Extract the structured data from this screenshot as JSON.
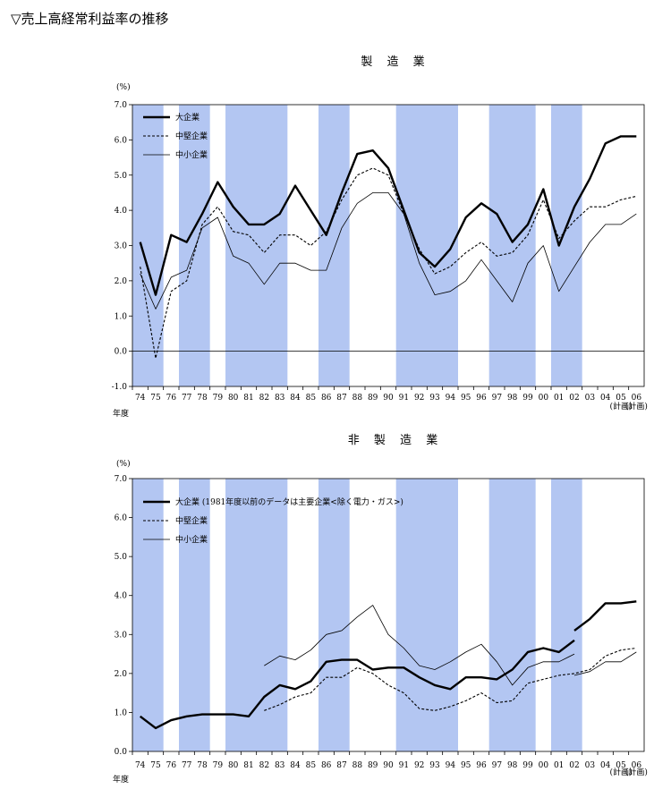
{
  "heading": "▽売上高経常利益率の推移",
  "chart_data": [
    {
      "type": "line",
      "title": "製 造 業",
      "unit_label": "(%)",
      "x_axis_label": "年度",
      "x": [
        "74",
        "75",
        "76",
        "77",
        "78",
        "79",
        "80",
        "81",
        "82",
        "83",
        "84",
        "85",
        "86",
        "87",
        "88",
        "89",
        "90",
        "91",
        "92",
        "93",
        "94",
        "95",
        "96",
        "97",
        "98",
        "99",
        "00",
        "01",
        "02",
        "03",
        "04",
        "05",
        "06"
      ],
      "plan_labels": [
        "(計画)",
        "(計画)"
      ],
      "ylim": [
        -1.0,
        7.0
      ],
      "yticks": [
        "7.0",
        "6.0",
        "5.0",
        "4.0",
        "3.0",
        "2.0",
        "1.0",
        "0.0",
        "-1.0"
      ],
      "grid": false,
      "legend_position": "top-left",
      "shaded_periods": [
        [
          "74",
          "75"
        ],
        [
          "77",
          "78"
        ],
        [
          "80",
          "83"
        ],
        [
          "86",
          "87"
        ],
        [
          "91",
          "94"
        ],
        [
          "97",
          "99"
        ],
        [
          "01",
          "02"
        ]
      ],
      "series": [
        {
          "name": "大企業",
          "style": "bold",
          "values": [
            3.1,
            1.6,
            3.3,
            3.1,
            3.9,
            4.8,
            4.1,
            3.6,
            3.6,
            3.9,
            4.7,
            4.0,
            3.3,
            4.5,
            5.6,
            5.7,
            5.2,
            4.0,
            2.8,
            2.4,
            2.9,
            3.8,
            4.2,
            3.9,
            3.1,
            3.6,
            4.6,
            3.0,
            4.1,
            4.9,
            5.9,
            6.1,
            6.1
          ]
        },
        {
          "name": "中堅企業",
          "style": "dashed",
          "values": [
            2.4,
            -0.2,
            1.7,
            2.0,
            3.6,
            4.1,
            3.4,
            3.3,
            2.8,
            3.3,
            3.3,
            3.0,
            3.4,
            4.3,
            5.0,
            5.2,
            5.0,
            3.9,
            2.9,
            2.2,
            2.4,
            2.8,
            3.1,
            2.7,
            2.8,
            3.3,
            4.3,
            3.2,
            3.7,
            4.1,
            4.1,
            4.3,
            4.4
          ]
        },
        {
          "name": "中小企業",
          "style": "thin",
          "values": [
            2.2,
            1.2,
            2.1,
            2.3,
            3.5,
            3.8,
            2.7,
            2.5,
            1.9,
            2.5,
            2.5,
            2.3,
            2.3,
            3.5,
            4.2,
            4.5,
            4.5,
            3.9,
            2.5,
            1.6,
            1.7,
            2.0,
            2.6,
            2.0,
            1.4,
            2.5,
            3.0,
            1.7,
            2.4,
            3.1,
            3.6,
            3.6,
            3.9
          ]
        }
      ]
    },
    {
      "type": "line",
      "title": "非 製 造 業",
      "unit_label": "(%)",
      "x_axis_label": "年度",
      "x": [
        "74",
        "75",
        "76",
        "77",
        "78",
        "79",
        "80",
        "81",
        "82",
        "83",
        "84",
        "85",
        "86",
        "87",
        "88",
        "89",
        "90",
        "91",
        "92",
        "93",
        "94",
        "95",
        "96",
        "97",
        "98",
        "99",
        "00",
        "01",
        "02",
        "03",
        "04",
        "05",
        "06"
      ],
      "plan_labels": [
        "(計画)",
        "(計画)"
      ],
      "ylim": [
        0.0,
        7.0
      ],
      "yticks": [
        "7.0",
        "6.0",
        "5.0",
        "4.0",
        "3.0",
        "2.0",
        "1.0",
        "0.0"
      ],
      "grid": false,
      "legend_position": "top-left",
      "shaded_periods": [
        [
          "74",
          "75"
        ],
        [
          "77",
          "78"
        ],
        [
          "80",
          "83"
        ],
        [
          "86",
          "87"
        ],
        [
          "91",
          "94"
        ],
        [
          "97",
          "99"
        ],
        [
          "01",
          "02"
        ]
      ],
      "series": [
        {
          "name": "大企業 (1981年度以前のデータは主要企業<除く電力・ガス>)",
          "style": "bold",
          "values": [
            0.9,
            0.6,
            0.8,
            0.9,
            0.95,
            0.95,
            0.95,
            0.9,
            1.4,
            1.7,
            1.6,
            1.8,
            2.3,
            2.35,
            2.35,
            2.1,
            2.15,
            2.15,
            1.9,
            1.7,
            1.6,
            1.9,
            1.9,
            1.85,
            2.1,
            2.55,
            2.65,
            2.55,
            2.85,
            null,
            null,
            null,
            null
          ],
          "extra_segment": {
            "from": "02",
            "values": [
              3.1,
              3.4,
              3.8,
              3.8,
              3.85
            ]
          }
        },
        {
          "name": "中堅企業",
          "style": "dashed",
          "values": [
            null,
            null,
            null,
            null,
            null,
            null,
            null,
            null,
            1.05,
            1.2,
            1.4,
            1.5,
            1.9,
            1.9,
            2.15,
            2.0,
            1.7,
            1.5,
            1.1,
            1.05,
            1.15,
            1.3,
            1.5,
            1.25,
            1.3,
            1.75,
            1.85,
            1.95,
            2.0,
            2.1,
            2.45,
            2.6,
            2.65
          ]
        },
        {
          "name": "中小企業",
          "style": "thin",
          "values": [
            null,
            null,
            null,
            null,
            null,
            null,
            null,
            null,
            2.2,
            2.45,
            2.35,
            2.6,
            3.0,
            3.1,
            3.45,
            3.75,
            3.0,
            2.65,
            2.2,
            2.1,
            2.3,
            2.55,
            2.75,
            2.3,
            1.7,
            2.15,
            2.3,
            2.3,
            2.5,
            null,
            null,
            null,
            null
          ],
          "extra_segment": {
            "from": "02",
            "values": [
              1.95,
              2.05,
              2.3,
              2.3,
              2.55
            ]
          }
        }
      ]
    }
  ]
}
